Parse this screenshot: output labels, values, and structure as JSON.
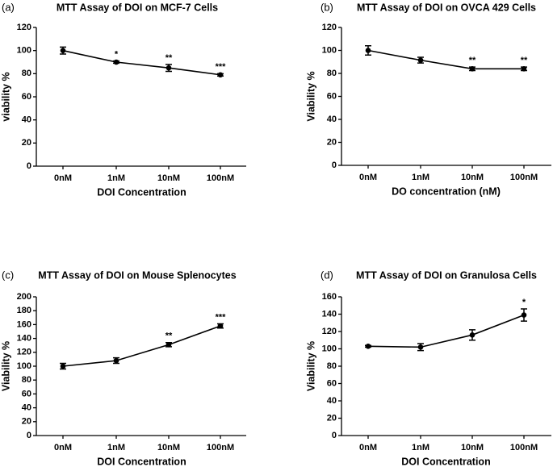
{
  "chart_data": [
    {
      "type": "line",
      "panel_label": "(a)",
      "title": "MTT Assay of DOI on MCF-7 Cells",
      "xlabel": "DOI Concentration",
      "ylabel": "viability %",
      "categories": [
        "0nM",
        "1nM",
        "10nM",
        "100nM"
      ],
      "values": [
        100,
        90,
        85,
        79
      ],
      "errors": [
        3,
        1,
        3,
        1
      ],
      "annotations": [
        null,
        "*",
        "**",
        "***"
      ],
      "ylim": [
        0,
        120
      ],
      "yticks": [
        0,
        20,
        40,
        60,
        80,
        100,
        120
      ],
      "color": "#000000"
    },
    {
      "type": "line",
      "panel_label": "(b)",
      "title": "MTT Assay of DOI on OVCA 429 Cells",
      "xlabel": "DO concentration (nM)",
      "ylabel": "Viability %",
      "categories": [
        "0nM",
        "1nM",
        "10nM",
        "100nM"
      ],
      "values": [
        100,
        91.5,
        84,
        84
      ],
      "errors": [
        4,
        2.5,
        1.5,
        1.5
      ],
      "annotations": [
        null,
        null,
        "**",
        "**"
      ],
      "ylim": [
        0,
        120
      ],
      "yticks": [
        0,
        20,
        40,
        60,
        80,
        100,
        120
      ],
      "color": "#000000"
    },
    {
      "type": "line",
      "panel_label": "(c)",
      "title": "MTT Assay of DOI on Mouse Splenocytes",
      "xlabel": "DOI Concentration",
      "ylabel": "Viability %",
      "categories": [
        "0nM",
        "1nM",
        "10nM",
        "100nM"
      ],
      "values": [
        100,
        108,
        131,
        158
      ],
      "errors": [
        4,
        4,
        3,
        3
      ],
      "annotations": [
        null,
        null,
        "**",
        "***"
      ],
      "ylim": [
        0,
        200
      ],
      "yticks": [
        0,
        20,
        40,
        60,
        80,
        100,
        120,
        140,
        160,
        180,
        200
      ],
      "color": "#000000"
    },
    {
      "type": "line",
      "panel_label": "(d)",
      "title": "MTT Assay of DOI on Granulosa Cells",
      "xlabel": "DOI Concentration",
      "ylabel": "Viability %",
      "categories": [
        "0nM",
        "1nM",
        "10nM",
        "100nM"
      ],
      "values": [
        103,
        102,
        116,
        139
      ],
      "errors": [
        1,
        4,
        6,
        7
      ],
      "annotations": [
        null,
        null,
        null,
        "*"
      ],
      "ylim": [
        0,
        160
      ],
      "yticks": [
        0,
        20,
        40,
        60,
        80,
        100,
        120,
        140,
        160
      ],
      "color": "#000000"
    }
  ]
}
